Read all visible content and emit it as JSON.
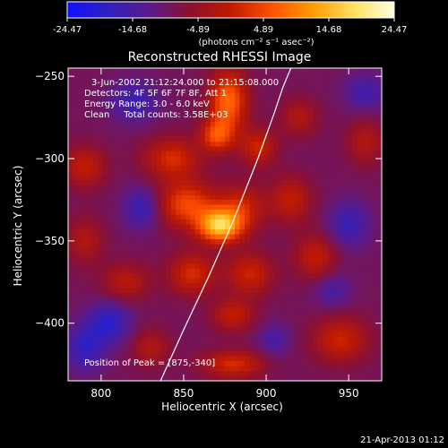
{
  "colorbar": {
    "ticks": [
      "-24.47",
      "-14.68",
      "-4.89",
      "4.89",
      "14.68",
      "24.47"
    ],
    "units_label": "(photons cm⁻² s⁻¹ asec⁻²)",
    "palette_stops": [
      "#1010ff",
      "#3020c0",
      "#5a1a8a",
      "#8c1030",
      "#c01a00",
      "#ff5000",
      "#ff9a00",
      "#ffe060",
      "#ffffe0"
    ]
  },
  "image": {
    "title": "Reconstructed RHESSI Image",
    "annotations": [
      "3-Jun-2002 21:12:24.000 to 21:15:08.000",
      "Detectors: 4F 5F 6F 7F 8F, Att 1",
      "Energy Range: 3.0 - 6.0 keV",
      "Clean     Total counts: 3.58E+03"
    ],
    "peak_label": "Position of Peak = [875,-340]",
    "footer_timestamp": "21-Apr-2013 01:12"
  },
  "chart_data": {
    "type": "heatmap",
    "title": "Reconstructed RHESSI Image",
    "xlabel": "Heliocentric X (arcsec)",
    "ylabel": "Heliocentric Y (arcsec)",
    "xlim": [
      780,
      970
    ],
    "ylim": [
      -435,
      -245
    ],
    "x_ticks": [
      800,
      850,
      900,
      950
    ],
    "y_ticks": [
      -250,
      -300,
      -350,
      -400
    ],
    "colorbar_range": [
      -24.47,
      24.47
    ],
    "peak": {
      "x": 875,
      "y": -340
    },
    "limb_curve": {
      "x": [
        836,
        850,
        865,
        880,
        895,
        905,
        910,
        915
      ],
      "y": [
        -435,
        -404,
        -372,
        -338,
        -300,
        -272,
        -257,
        -245
      ]
    },
    "sources": [
      {
        "x": 872,
        "y": -341,
        "sigma_x": 9,
        "sigma_y": 7,
        "amp": 24
      },
      {
        "x": 885,
        "y": -330,
        "sigma_x": 10,
        "sigma_y": 10,
        "amp": 10
      },
      {
        "x": 852,
        "y": -328,
        "sigma_x": 13,
        "sigma_y": 10,
        "amp": 14
      },
      {
        "x": 843,
        "y": -300,
        "sigma_x": 12,
        "sigma_y": 9,
        "amp": 11
      },
      {
        "x": 877,
        "y": -265,
        "sigma_x": 8,
        "sigma_y": 13,
        "amp": 17
      },
      {
        "x": 870,
        "y": -286,
        "sigma_x": 7,
        "sigma_y": 7,
        "amp": 13
      },
      {
        "x": 895,
        "y": -293,
        "sigma_x": 8,
        "sigma_y": 8,
        "amp": 10
      },
      {
        "x": 855,
        "y": -370,
        "sigma_x": 10,
        "sigma_y": 9,
        "amp": 11
      },
      {
        "x": 890,
        "y": -370,
        "sigma_x": 10,
        "sigma_y": 9,
        "amp": 10
      },
      {
        "x": 880,
        "y": -395,
        "sigma_x": 9,
        "sigma_y": 7,
        "amp": 9
      },
      {
        "x": 880,
        "y": -425,
        "sigma_x": 13,
        "sigma_y": 6,
        "amp": 11
      },
      {
        "x": 915,
        "y": -325,
        "sigma_x": 9,
        "sigma_y": 10,
        "amp": 9
      },
      {
        "x": 930,
        "y": -360,
        "sigma_x": 9,
        "sigma_y": 10,
        "amp": 9
      },
      {
        "x": 945,
        "y": -410,
        "sigma_x": 12,
        "sigma_y": 10,
        "amp": 10
      },
      {
        "x": 920,
        "y": -275,
        "sigma_x": 8,
        "sigma_y": 8,
        "amp": 7
      },
      {
        "x": 960,
        "y": -290,
        "sigma_x": 8,
        "sigma_y": 10,
        "amp": 7
      },
      {
        "x": 790,
        "y": -305,
        "sigma_x": 9,
        "sigma_y": 9,
        "amp": 9
      },
      {
        "x": 790,
        "y": -350,
        "sigma_x": 8,
        "sigma_y": 10,
        "amp": 7
      },
      {
        "x": 815,
        "y": -375,
        "sigma_x": 10,
        "sigma_y": 8,
        "amp": 8
      },
      {
        "x": 830,
        "y": -415,
        "sigma_x": 8,
        "sigma_y": 8,
        "amp": 7
      },
      {
        "x": 825,
        "y": -330,
        "sigma_x": 8,
        "sigma_y": 9,
        "amp": -9
      },
      {
        "x": 805,
        "y": -400,
        "sigma_x": 9,
        "sigma_y": 9,
        "amp": -10
      },
      {
        "x": 790,
        "y": -415,
        "sigma_x": 8,
        "sigma_y": 10,
        "amp": -9
      },
      {
        "x": 820,
        "y": -265,
        "sigma_x": 10,
        "sigma_y": 9,
        "amp": -8
      },
      {
        "x": 950,
        "y": -340,
        "sigma_x": 9,
        "sigma_y": 10,
        "amp": -8
      },
      {
        "x": 940,
        "y": -380,
        "sigma_x": 8,
        "sigma_y": 8,
        "amp": -6
      },
      {
        "x": 960,
        "y": -260,
        "sigma_x": 9,
        "sigma_y": 8,
        "amp": -7
      },
      {
        "x": 905,
        "y": -410,
        "sigma_x": 7,
        "sigma_y": 7,
        "amp": -6
      }
    ]
  }
}
